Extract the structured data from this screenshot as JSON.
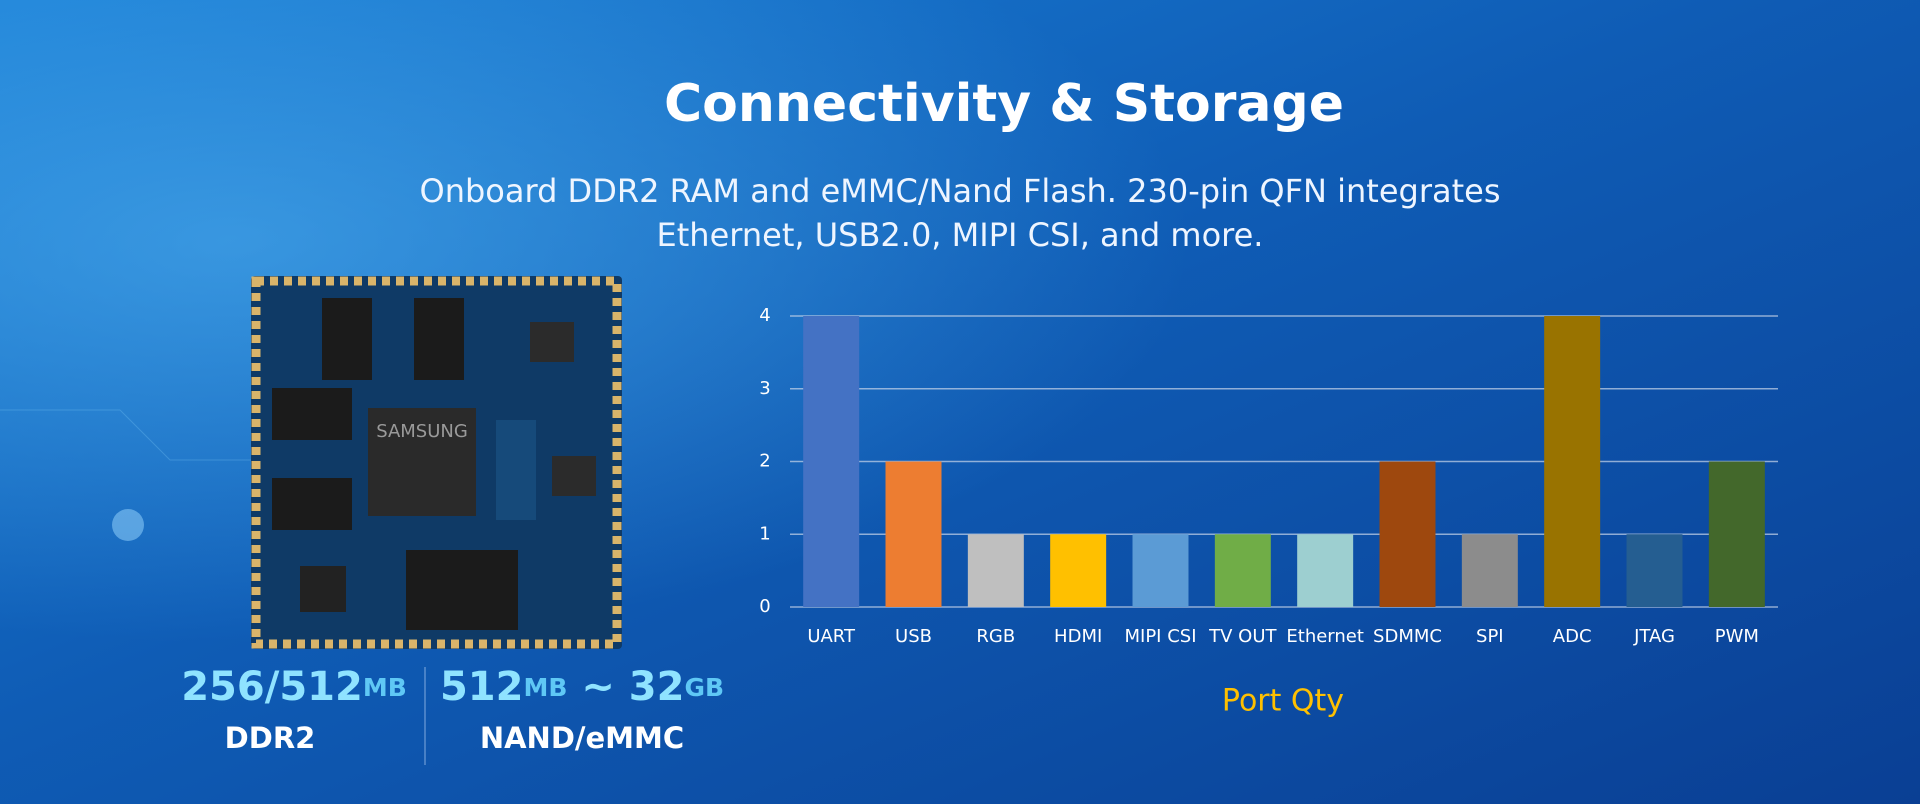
{
  "header": {
    "title": "Connectivity & Storage",
    "subtitle": [
      "Onboard DDR2 RAM and eMMC/Nand Flash. 230-pin QFN integrates",
      "Ethernet, USB2.0, MIPI CSI, and more."
    ]
  },
  "specs": [
    {
      "parts": [
        "256/512",
        "MB"
      ],
      "label": "DDR2"
    },
    {
      "parts": [
        "512",
        "MB",
        " ~ 32",
        "GB"
      ],
      "label": "NAND/eMMC"
    }
  ],
  "chart_data": {
    "type": "bar",
    "x_label": "Port Qty",
    "categories": [
      "UART",
      "USB",
      "RGB",
      "HDMI",
      "MIPI CSI",
      "TV OUT",
      "Ethernet",
      "SDMMC",
      "SPI",
      "ADC",
      "JTAG",
      "PWM"
    ],
    "values": [
      4,
      2,
      1,
      1,
      1,
      1,
      1,
      2,
      1,
      4,
      1,
      2
    ],
    "colors": [
      "#4472c4",
      "#ed7d31",
      "#bfbfbf",
      "#ffc000",
      "#5b9bd5",
      "#70ad47",
      "#9dcfd0",
      "#9e480e",
      "#8c8c8c",
      "#997300",
      "#255e91",
      "#43682b"
    ],
    "ylim": [
      0,
      4
    ],
    "yticks": [
      0,
      1,
      2,
      3,
      4
    ],
    "grid": true
  }
}
